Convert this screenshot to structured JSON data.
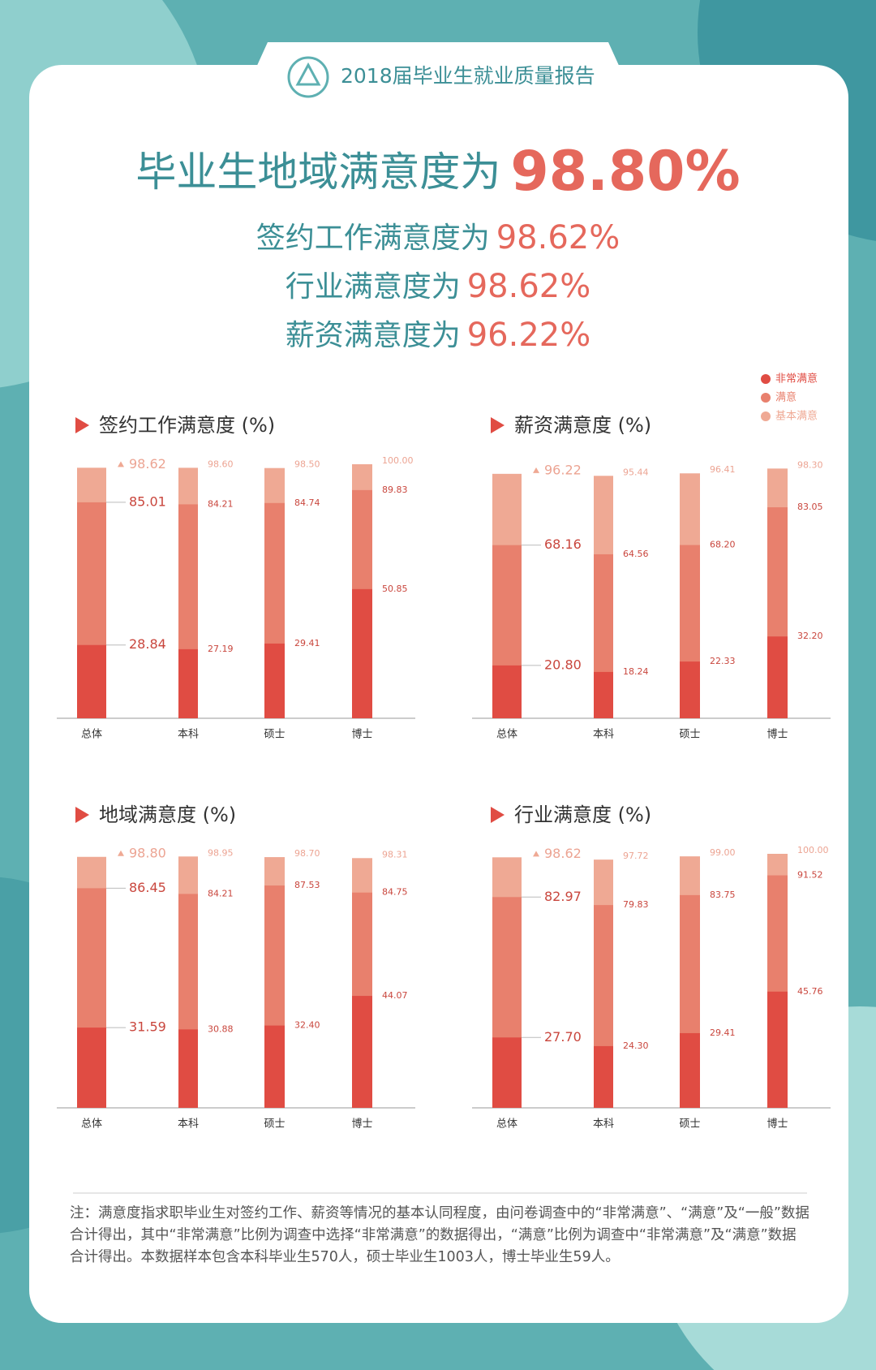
{
  "header": {
    "title": "2018届毕业生就业质量报告"
  },
  "headline": {
    "main": {
      "text": "毕业生地域满意度为",
      "value": "98.80%"
    },
    "lines": [
      {
        "text": "签约工作满意度为",
        "value": "98.62%"
      },
      {
        "text": "行业满意度为",
        "value": "98.62%"
      },
      {
        "text": "薪资满意度为",
        "value": "96.22%"
      }
    ]
  },
  "legend": {
    "items": [
      {
        "name": "非常满意",
        "color": "#e04c43"
      },
      {
        "name": "满意",
        "color": "#e8806d"
      },
      {
        "name": "基本满意",
        "color": "#efa994"
      }
    ]
  },
  "chart_data": [
    {
      "type": "bar",
      "title": "签约工作满意度 (%)",
      "categories": [
        "总体",
        "本科",
        "硕士",
        "博士"
      ],
      "ylim": [
        0,
        100
      ],
      "series": [
        {
          "values": [
            98.62,
            98.6,
            98.5,
            100
          ],
          "value_labels": [
            "98.62",
            "98.60",
            "98.50",
            "100.00"
          ]
        },
        {
          "values": [
            85.01,
            84.21,
            84.74,
            89.83
          ],
          "value_labels": [
            "85.01",
            "84.21",
            "84.74",
            "89.83"
          ]
        },
        {
          "values": [
            28.84,
            27.19,
            29.41,
            50.85
          ],
          "value_labels": [
            "28.84",
            "27.19",
            "29.41",
            "50.85"
          ]
        }
      ]
    },
    {
      "type": "bar",
      "title": "薪资满意度 (%)",
      "categories": [
        "总体",
        "本科",
        "硕士",
        "博士"
      ],
      "ylim": [
        0,
        100
      ],
      "series": [
        {
          "values": [
            96.22,
            95.44,
            96.41,
            98.3
          ],
          "value_labels": [
            "96.22",
            "95.44",
            "96.41",
            "98.30"
          ]
        },
        {
          "values": [
            68.16,
            64.56,
            68.2,
            83.05
          ],
          "value_labels": [
            "68.16",
            "64.56",
            "68.20",
            "83.05"
          ]
        },
        {
          "values": [
            20.8,
            18.24,
            22.33,
            32.2
          ],
          "value_labels": [
            "20.80",
            "18.24",
            "22.33",
            "32.20"
          ]
        }
      ]
    },
    {
      "type": "bar",
      "title": "地域满意度 (%)",
      "categories": [
        "总体",
        "本科",
        "硕士",
        "博士"
      ],
      "ylim": [
        0,
        100
      ],
      "series": [
        {
          "values": [
            98.8,
            98.95,
            98.7,
            98.31
          ],
          "value_labels": [
            "98.80",
            "98.95",
            "98.70",
            "98.31"
          ]
        },
        {
          "values": [
            86.45,
            84.21,
            87.53,
            84.75
          ],
          "value_labels": [
            "86.45",
            "84.21",
            "87.53",
            "84.75"
          ]
        },
        {
          "values": [
            31.59,
            30.88,
            32.4,
            44.07
          ],
          "value_labels": [
            "31.59",
            "30.88",
            "32.40",
            "44.07"
          ]
        }
      ]
    },
    {
      "type": "bar",
      "title": "行业满意度 (%)",
      "categories": [
        "总体",
        "本科",
        "硕士",
        "博士"
      ],
      "ylim": [
        0,
        100
      ],
      "series": [
        {
          "values": [
            98.62,
            97.72,
            99,
            100
          ],
          "value_labels": [
            "98.62",
            "97.72",
            "99.00",
            "100.00"
          ]
        },
        {
          "values": [
            82.97,
            79.83,
            83.75,
            91.52
          ],
          "value_labels": [
            "82.97",
            "79.83",
            "83.75",
            "91.52"
          ]
        },
        {
          "values": [
            27.7,
            24.3,
            29.41,
            45.76
          ],
          "value_labels": [
            "27.70",
            "24.30",
            "29.41",
            "45.76"
          ]
        }
      ]
    }
  ],
  "note": "注：满意度指求职毕业生对签约工作、薪资等情况的基本认同程度，由问卷调查中的“非常满意”、“满意”及“一般”数据合计得出，其中“非常满意”比例为调查中选择“非常满意”的数据得出，“满意”比例为调查中“非常满意”及“满意”数据合计得出。本数据样本包含本科毕业生570人，硕士毕业生1003人，博士毕业生59人。"
}
